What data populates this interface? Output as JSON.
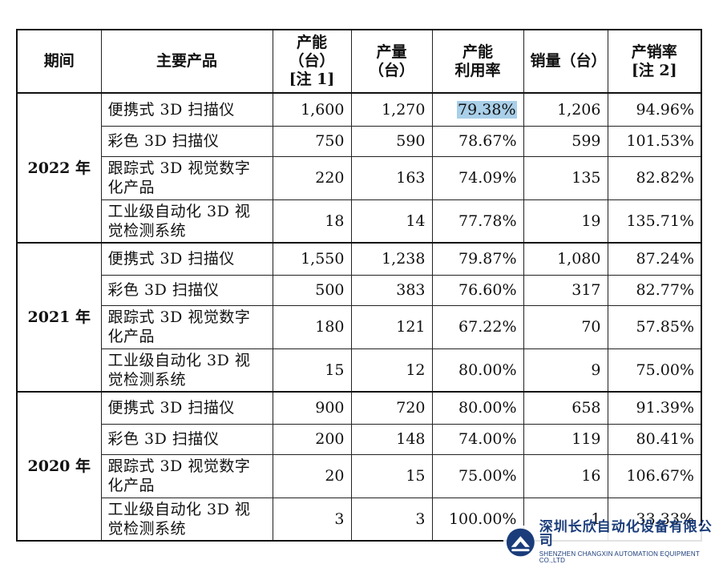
{
  "table": {
    "headers": {
      "period": "期间",
      "product": "主要产品",
      "capacity": "产能\n（台）\n[注 1]",
      "output": "产量\n（台）",
      "utilization": "产能\n利用率",
      "sales": "销量（台）",
      "sales_rate": "产销率\n[注 2]"
    },
    "years": [
      {
        "period": "2022 年",
        "rows": [
          {
            "product": "便携式 3D 扫描仪",
            "capacity": "1,600",
            "output": "1,270",
            "utilization": "79.38%",
            "sales": "1,206",
            "sales_rate": "94.96%"
          },
          {
            "product": "彩色 3D 扫描仪",
            "capacity": "750",
            "output": "590",
            "utilization": "78.67%",
            "sales": "599",
            "sales_rate": "101.53%"
          },
          {
            "product": "跟踪式 3D 视觉数字化产品",
            "capacity": "220",
            "output": "163",
            "utilization": "74.09%",
            "sales": "135",
            "sales_rate": "82.82%"
          },
          {
            "product": "工业级自动化 3D 视觉检测系统",
            "capacity": "18",
            "output": "14",
            "utilization": "77.78%",
            "sales": "19",
            "sales_rate": "135.71%"
          }
        ]
      },
      {
        "period": "2021 年",
        "rows": [
          {
            "product": "便携式 3D 扫描仪",
            "capacity": "1,550",
            "output": "1,238",
            "utilization": "79.87%",
            "sales": "1,080",
            "sales_rate": "87.24%"
          },
          {
            "product": "彩色 3D 扫描仪",
            "capacity": "500",
            "output": "383",
            "utilization": "76.60%",
            "sales": "317",
            "sales_rate": "82.77%"
          },
          {
            "product": "跟踪式 3D 视觉数字化产品",
            "capacity": "180",
            "output": "121",
            "utilization": "67.22%",
            "sales": "70",
            "sales_rate": "57.85%"
          },
          {
            "product": "工业级自动化 3D 视觉检测系统",
            "capacity": "15",
            "output": "12",
            "utilization": "80.00%",
            "sales": "9",
            "sales_rate": "75.00%"
          }
        ]
      },
      {
        "period": "2020 年",
        "rows": [
          {
            "product": "便携式 3D 扫描仪",
            "capacity": "900",
            "output": "720",
            "utilization": "80.00%",
            "sales": "658",
            "sales_rate": "91.39%"
          },
          {
            "product": "彩色 3D 扫描仪",
            "capacity": "200",
            "output": "148",
            "utilization": "74.00%",
            "sales": "119",
            "sales_rate": "80.41%"
          },
          {
            "product": "跟踪式 3D 视觉数字化产品",
            "capacity": "20",
            "output": "15",
            "utilization": "75.00%",
            "sales": "16",
            "sales_rate": "106.67%"
          },
          {
            "product": "工业级自动化 3D 视觉检测系统",
            "capacity": "3",
            "output": "3",
            "utilization": "100.00%",
            "sales": "1",
            "sales_rate": "33.33%"
          }
        ]
      }
    ]
  },
  "highlight_color": "#a9cfe9",
  "watermark": {
    "logo_icon": "changxin-logo-icon",
    "company_cn": "深圳长欣自动化设备有限公司",
    "company_en": "SHENZHEN CHANGXIN AUTOMATION EQUIPMENT CO.,LTD",
    "color": "#1a3c7a"
  }
}
